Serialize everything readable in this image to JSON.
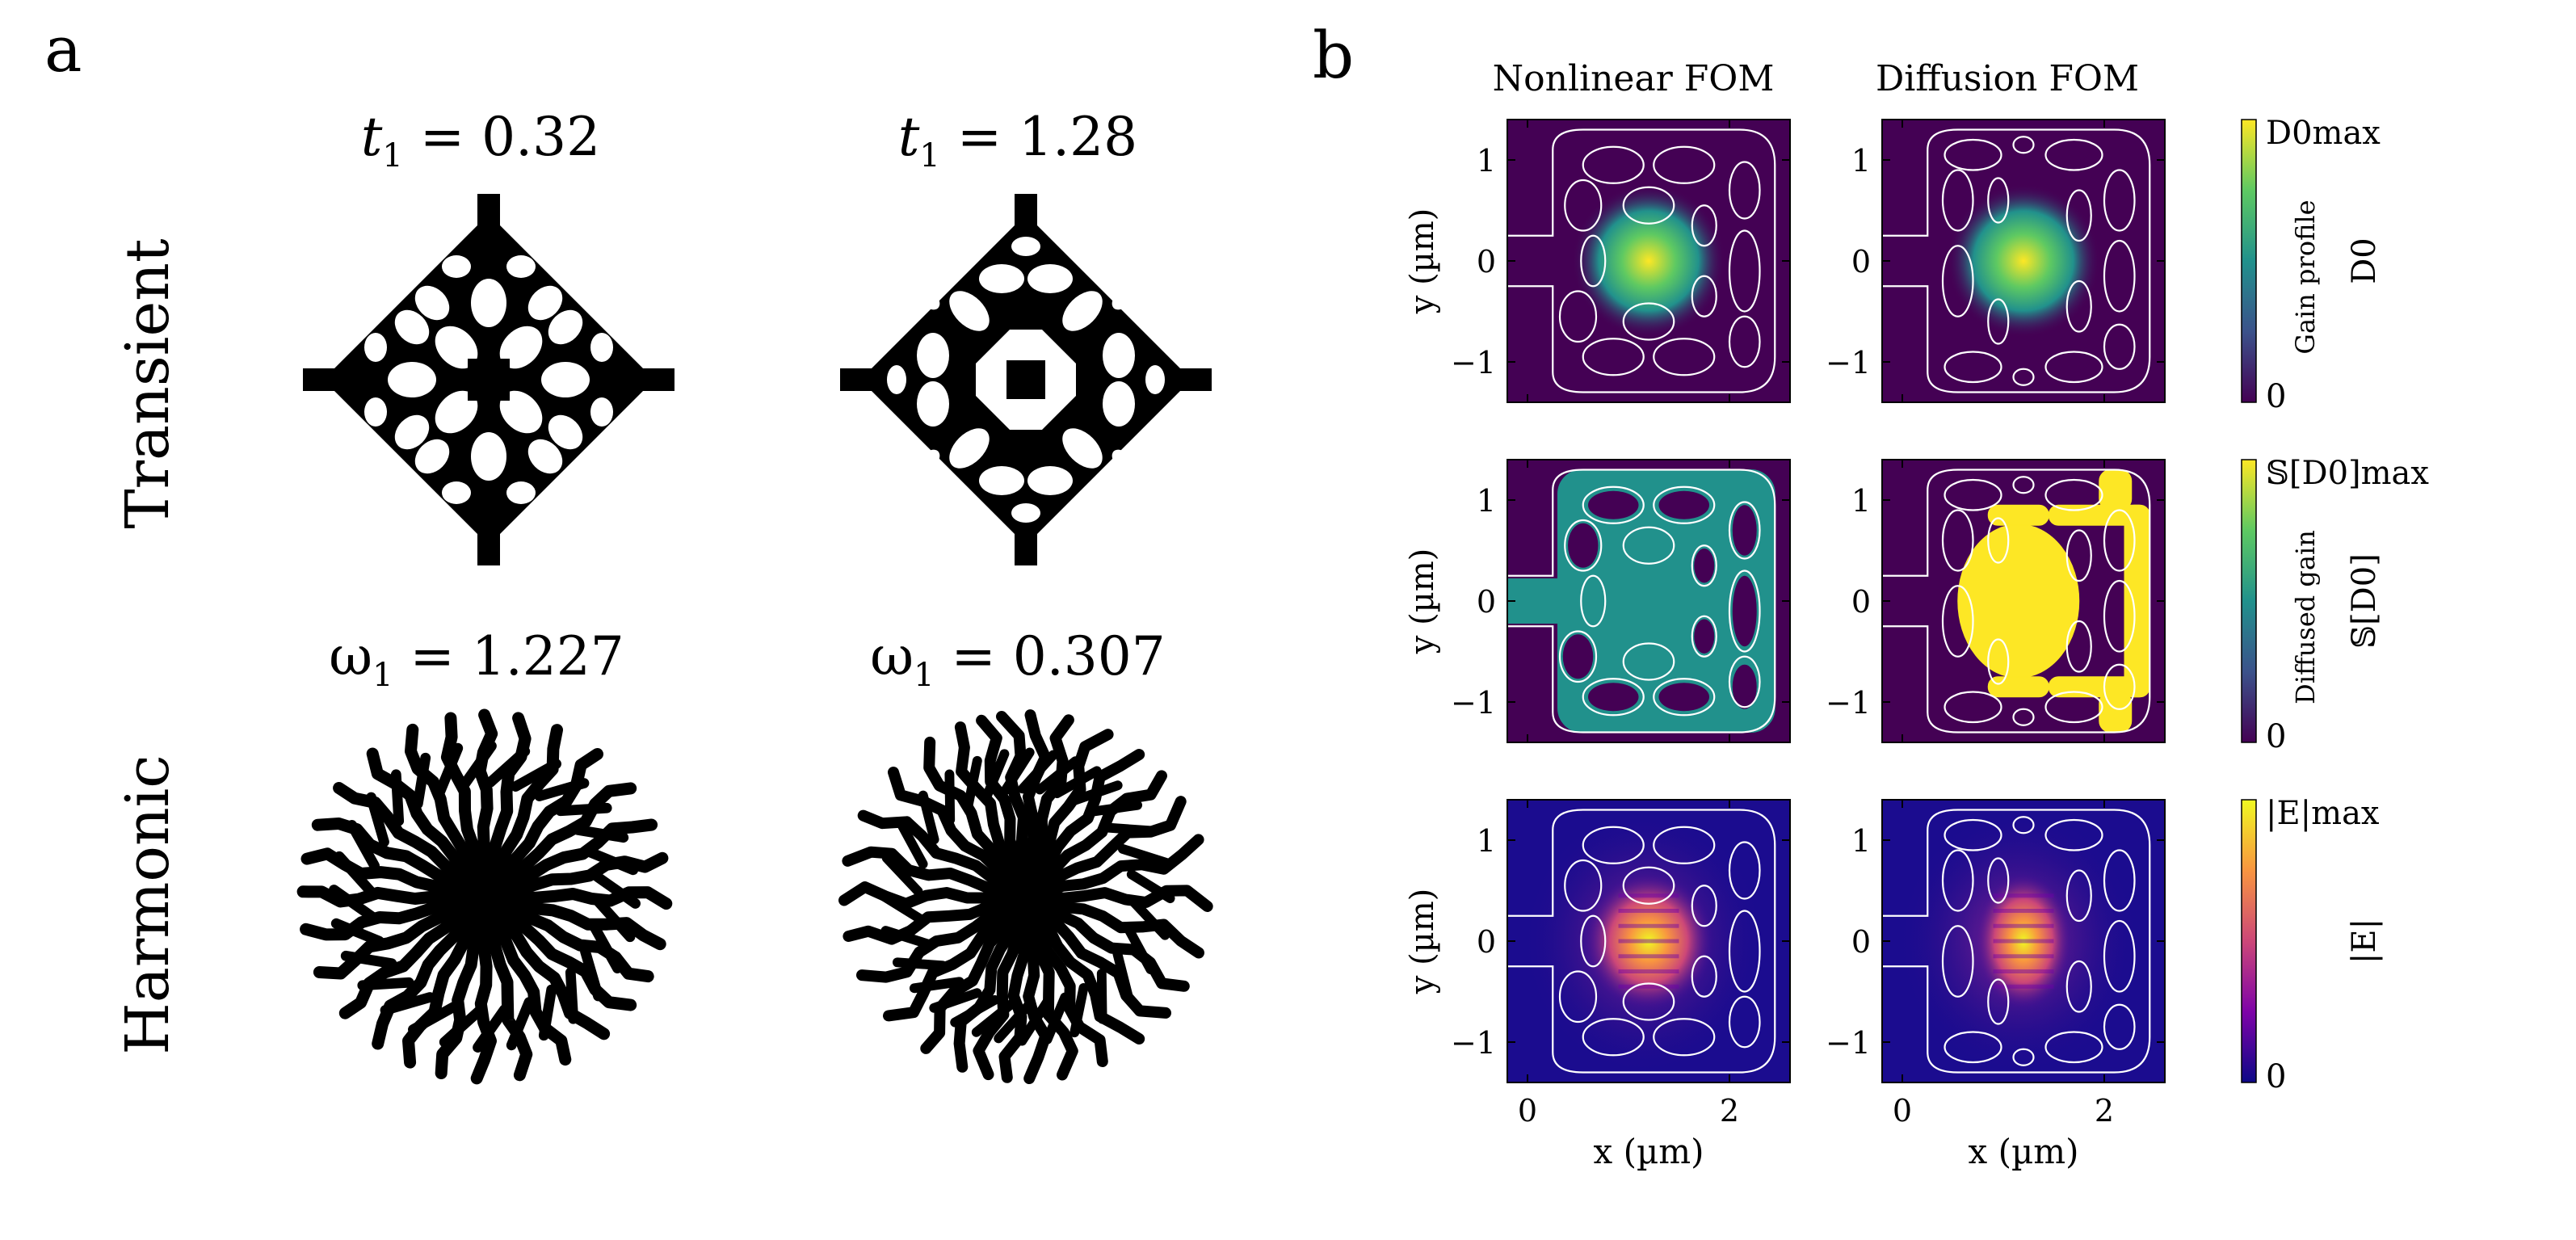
{
  "panel_a": {
    "label": "a",
    "row_labels": [
      "Transient",
      "Harmonic"
    ],
    "titles": [
      {
        "var": "t",
        "sub": "1",
        "eq": " = 0.32"
      },
      {
        "var": "t",
        "sub": "1",
        "eq": " = 1.28"
      },
      {
        "var": "ω",
        "sub": "1",
        "eq": " = 1.227"
      },
      {
        "var": "ω",
        "sub": "1",
        "eq": " = 0.307"
      }
    ]
  },
  "panel_b": {
    "label": "b",
    "column_titles": [
      "Nonlinear FOM",
      "Diffusion FOM"
    ],
    "y_label": "y (µm)",
    "x_label": "x (µm)",
    "y_ticks": [
      "1",
      "0",
      "−1"
    ],
    "x_ticks": [
      "0",
      "2"
    ],
    "rows": [
      {
        "cbar_top": "D0max",
        "cbar_bottom": "0",
        "cbar_name": "Gain profile",
        "cbar_symbol": "D0",
        "colormap": "viridis"
      },
      {
        "cbar_top": "𝕊[D0]max",
        "cbar_bottom": "0",
        "cbar_name": "Diffused gain",
        "cbar_symbol": "𝕊[D0]",
        "colormap": "viridis"
      },
      {
        "cbar_top": "|E|max",
        "cbar_bottom": "0",
        "cbar_name": "",
        "cbar_symbol": "|E|",
        "colormap": "plasma"
      }
    ],
    "colors": {
      "viridis_dark": "#440154",
      "viridis_mid": "#21918c",
      "viridis_bright": "#fde725",
      "plasma_dark": "#0d0887",
      "plasma_bright": "#f0f921",
      "contour": "#ffffff"
    }
  }
}
